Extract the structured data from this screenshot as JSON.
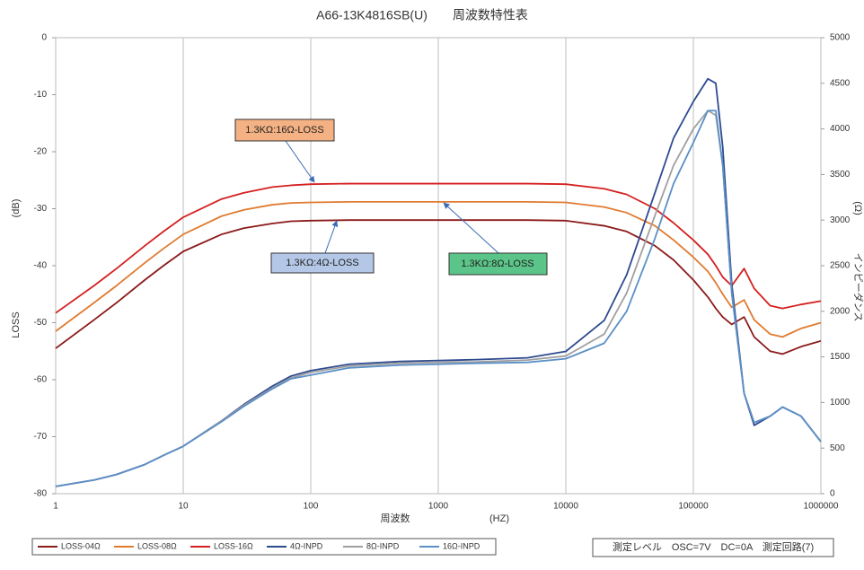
{
  "chart_data": {
    "type": "line",
    "title": "A66-13K4816SB(U)　　周波数特性表",
    "x_label": "周波数",
    "x_unit": "(HZ)",
    "y_label": "LOSS",
    "y_unit": "(dB)",
    "y2_label": "インピーダンス",
    "y2_unit": "(Ω)",
    "x_log": true,
    "grid": true,
    "x": [
      1,
      2,
      3,
      5,
      7,
      10,
      20,
      30,
      50,
      70,
      100,
      200,
      500,
      1000,
      2000,
      5000,
      10000,
      20000,
      30000,
      50000,
      70000,
      100000,
      130000,
      150000,
      170000,
      200000,
      250000,
      300000,
      400000,
      500000,
      700000,
      1000000
    ],
    "xlim": [
      1,
      1000000
    ],
    "xticks": [
      1,
      10,
      100,
      1000,
      10000,
      100000,
      1000000
    ],
    "ylim": [
      -80,
      0
    ],
    "yticks": [
      -80,
      -70,
      -60,
      -50,
      -40,
      -30,
      -20,
      -10,
      0
    ],
    "y2lim": [
      0,
      5000
    ],
    "y2ticks": [
      0,
      500,
      1000,
      1500,
      2000,
      2500,
      3000,
      3500,
      4000,
      4500,
      5000
    ],
    "series": [
      {
        "name": "LOSS-04Ω",
        "color": "#8b1a1a",
        "values": [
          -54.5,
          -49.5,
          -46.5,
          -42.5,
          -40,
          -37.5,
          -34.5,
          -33.4,
          -32.6,
          -32.2,
          -32.1,
          -32,
          -32,
          -32,
          -32,
          -32,
          -32.1,
          -33,
          -34,
          -36.5,
          -39,
          -42.5,
          -45.5,
          -47.5,
          -49,
          -50.3,
          -49,
          -52.5,
          -55,
          -55.5,
          -54.2,
          -53.2
        ]
      },
      {
        "name": "LOSS-08Ω",
        "color": "#e07b30",
        "values": [
          -51.5,
          -46.5,
          -43.5,
          -39.5,
          -37,
          -34.5,
          -31.3,
          -30.2,
          -29.3,
          -29,
          -28.9,
          -28.8,
          -28.8,
          -28.8,
          -28.8,
          -28.8,
          -28.9,
          -29.7,
          -30.7,
          -33,
          -35.5,
          -38.5,
          -41,
          -43,
          -45,
          -47.3,
          -46,
          -49.5,
          -52,
          -52.5,
          -51,
          -50
        ]
      },
      {
        "name": "LOSS-16Ω",
        "color": "#d42020",
        "values": [
          -48.3,
          -43.5,
          -40.5,
          -36.5,
          -34,
          -31.5,
          -28.3,
          -27.2,
          -26.2,
          -25.9,
          -25.7,
          -25.6,
          -25.6,
          -25.6,
          -25.6,
          -25.6,
          -25.7,
          -26.5,
          -27.5,
          -30,
          -32.5,
          -35.5,
          -38,
          -40,
          -42,
          -43.5,
          -40.5,
          -44,
          -47,
          -47.5,
          -46.8,
          -46.2
        ]
      },
      {
        "name": "4Ω-INPD",
        "color": "#2e4a8f",
        "axis": "y2",
        "values": [
          80,
          150,
          210,
          320,
          420,
          520,
          800,
          980,
          1180,
          1290,
          1350,
          1420,
          1450,
          1460,
          1470,
          1490,
          1560,
          1900,
          2400,
          3300,
          3900,
          4300,
          4550,
          4500,
          3800,
          2300,
          1100,
          750,
          850,
          950,
          850,
          570
        ]
      },
      {
        "name": "8Ω-INPD",
        "color": "#a0a0a0",
        "axis": "y2",
        "values": [
          80,
          150,
          210,
          320,
          420,
          520,
          800,
          970,
          1160,
          1270,
          1330,
          1400,
          1430,
          1440,
          1445,
          1465,
          1510,
          1750,
          2200,
          3050,
          3600,
          4000,
          4200,
          4150,
          3600,
          2200,
          1100,
          780,
          850,
          950,
          850,
          570
        ]
      },
      {
        "name": "16Ω-INPD",
        "color": "#5b8fc7",
        "axis": "y2",
        "values": [
          80,
          150,
          210,
          320,
          420,
          520,
          790,
          960,
          1150,
          1260,
          1300,
          1380,
          1410,
          1420,
          1430,
          1440,
          1480,
          1650,
          2000,
          2800,
          3400,
          3850,
          4200,
          4200,
          3600,
          2200,
          1100,
          780,
          850,
          950,
          850,
          570
        ]
      }
    ],
    "annotations": [
      "1.3KΩ:16Ω-LOSS",
      "1.3KΩ:4Ω-LOSS",
      "1.3KΩ:8Ω-LOSS"
    ],
    "note": "測定レベル　OSC=7V　DC=0A　測定回路(7)"
  }
}
